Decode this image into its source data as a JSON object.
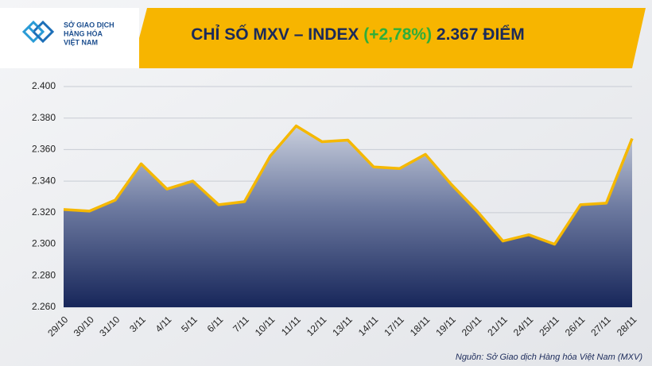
{
  "logo": {
    "lines": [
      "SỞ GIAO DỊCH",
      "HÀNG HÓA",
      "VIỆT NAM"
    ]
  },
  "chart_data": {
    "type": "area",
    "title": "CHỈ SỐ MXV – INDEX",
    "title_change": "(+2,78%)",
    "title_value": "2.367 ĐIỂM",
    "categories": [
      "29/10",
      "30/10",
      "31/10",
      "3/11",
      "4/11",
      "5/11",
      "6/11",
      "7/11",
      "10/11",
      "11/11",
      "12/11",
      "13/11",
      "14/11",
      "17/11",
      "18/11",
      "19/11",
      "20/11",
      "21/11",
      "24/11",
      "25/11",
      "26/11",
      "27/11",
      "28/11"
    ],
    "values": [
      2322,
      2321,
      2328,
      2351,
      2335,
      2340,
      2325,
      2327,
      2356,
      2375,
      2365,
      2366,
      2349,
      2348,
      2357,
      2338,
      2321,
      2302,
      2306,
      2300,
      2325,
      2326,
      2367
    ],
    "color": "#f5b800",
    "ylim": [
      2260,
      2400
    ],
    "yticks": [
      {
        "value": 2260,
        "label": "2.260"
      },
      {
        "value": 2280,
        "label": "2.280"
      },
      {
        "value": 2300,
        "label": "2.300"
      },
      {
        "value": 2320,
        "label": "2.320"
      },
      {
        "value": 2340,
        "label": "2.340"
      },
      {
        "value": 2360,
        "label": "2.360"
      },
      {
        "value": 2380,
        "label": "2.380"
      },
      {
        "value": 2400,
        "label": "2.400"
      }
    ],
    "grid": true,
    "source": "Nguồn: Sở Giao dịch Hàng hóa Việt Nam (MXV)"
  }
}
